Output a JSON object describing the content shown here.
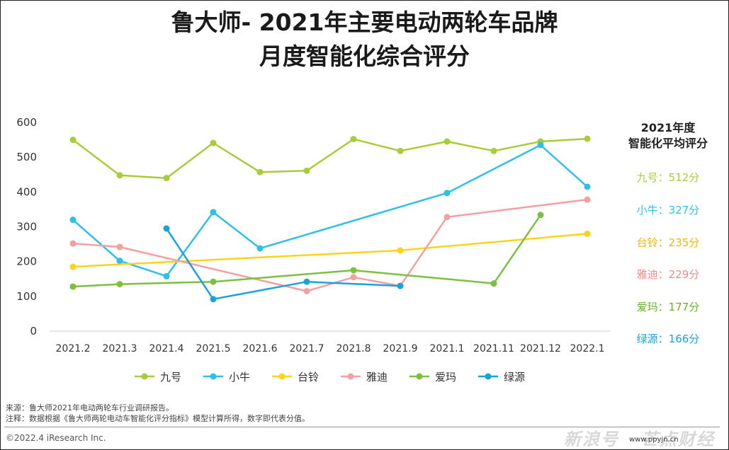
{
  "title_line1": "鲁大师- 2021年主要电动两轮车品牌",
  "title_line2": "月度智能化综合评分",
  "chart_data": {
    "type": "line",
    "categories": [
      "2021.2",
      "2021.3",
      "2021.4",
      "2021.5",
      "2021.6",
      "2021.7",
      "2021.8",
      "2021.9",
      "2021.1",
      "2021.11",
      "2021.12",
      "2022.1"
    ],
    "ylim": [
      0,
      600
    ],
    "yticks": [
      0,
      100,
      200,
      300,
      400,
      500,
      600
    ],
    "grid": false,
    "legend_position": "bottom",
    "series": [
      {
        "name": "九号",
        "color": "#a8cc3a",
        "values": [
          550,
          448,
          440,
          541,
          457,
          461,
          552,
          518,
          545,
          518,
          545,
          553
        ]
      },
      {
        "name": "小牛",
        "color": "#2ec0ea",
        "values": [
          320,
          202,
          158,
          342,
          238,
          null,
          null,
          null,
          397,
          null,
          535,
          415
        ]
      },
      {
        "name": "台铃",
        "color": "#ffd21c",
        "values": [
          185,
          null,
          null,
          null,
          null,
          null,
          null,
          232,
          null,
          null,
          null,
          280
        ]
      },
      {
        "name": "雅迪",
        "color": "#f4a0a0",
        "values": [
          252,
          242,
          null,
          null,
          null,
          115,
          155,
          130,
          328,
          null,
          null,
          378
        ]
      },
      {
        "name": "爱玛",
        "color": "#7cc040",
        "values": [
          128,
          135,
          null,
          142,
          null,
          null,
          175,
          null,
          null,
          137,
          334,
          null
        ]
      },
      {
        "name": "绿源",
        "color": "#1aa2dc",
        "values": [
          null,
          null,
          295,
          92,
          null,
          142,
          null,
          130,
          null,
          null,
          null,
          null
        ]
      }
    ]
  },
  "avg_panel": {
    "header_line1": "2021年度",
    "header_line2": "智能化平均评分",
    "items": [
      {
        "text": "九号：512分",
        "color": "#a8cc3a"
      },
      {
        "text": "小牛：327分",
        "color": "#2ec0ea"
      },
      {
        "text": "台铃：235分",
        "color": "#f0b800"
      },
      {
        "text": "雅迪：229分",
        "color": "#f08a8a"
      },
      {
        "text": "爱玛：177分",
        "color": "#6cae30"
      },
      {
        "text": "绿源：166分",
        "color": "#1aa2dc"
      }
    ]
  },
  "notes": {
    "source": "来源：鲁大师2021年电动两轮车行业调研报告。",
    "remark": "注释：数据根据《鲁大师两轮电动车智能化评分指标》模型计算所得，数字即代表分值。"
  },
  "copyright": "©2022.4 iResearch Inc.",
  "watermark": "新浪号",
  "watermark2": "芒点财经",
  "watermark_url": "www.ppyjn.cn"
}
